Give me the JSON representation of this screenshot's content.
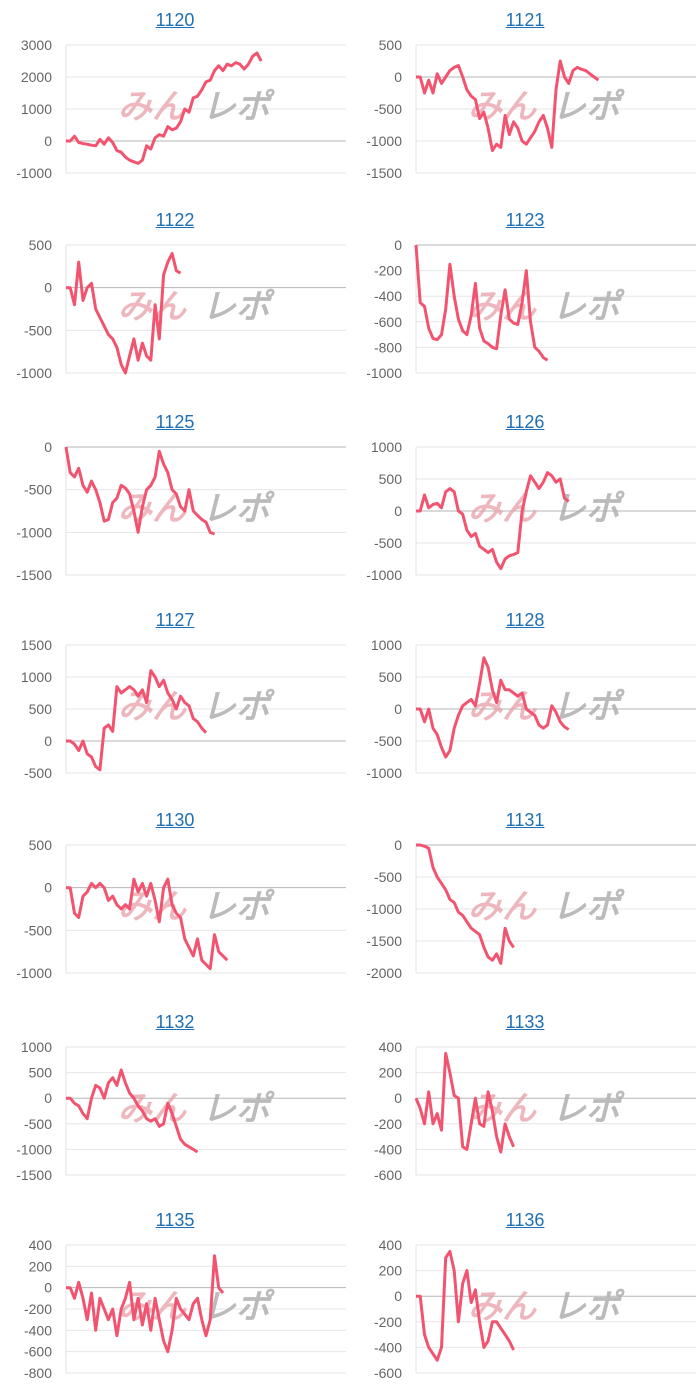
{
  "watermark": {
    "text_a": "みん",
    "text_b": "レポ",
    "color_a": "#e8a0a8",
    "color_b": "#b0b0b0"
  },
  "line_color": "#f25470",
  "chart_data": [
    {
      "type": "line",
      "title": "1120",
      "yticks": [
        3000,
        2000,
        1000,
        0,
        -1000
      ],
      "ylim": [
        -1000,
        3000
      ],
      "values": [
        0,
        0,
        150,
        -50,
        -80,
        -100,
        -130,
        -150,
        50,
        -100,
        100,
        -50,
        -300,
        -350,
        -500,
        -600,
        -650,
        -700,
        -600,
        -150,
        -250,
        100,
        200,
        150,
        450,
        350,
        400,
        600,
        1000,
        900,
        1350,
        1400,
        1600,
        1850,
        1900,
        2200,
        2350,
        2200,
        2400,
        2350,
        2450,
        2400,
        2250,
        2400,
        2650,
        2750,
        2500
      ]
    },
    {
      "type": "line",
      "title": "1121",
      "yticks": [
        500,
        0,
        -500,
        -1000,
        -1500
      ],
      "ylim": [
        -1500,
        500
      ],
      "values": [
        0,
        0,
        -250,
        -50,
        -250,
        50,
        -100,
        0,
        100,
        150,
        180,
        0,
        -200,
        -300,
        -350,
        -650,
        -550,
        -800,
        -1150,
        -1050,
        -1100,
        -600,
        -900,
        -700,
        -800,
        -1000,
        -1050,
        -950,
        -850,
        -700,
        -600,
        -800,
        -1100,
        -200,
        250,
        0,
        -100,
        100,
        150,
        120,
        100,
        50,
        0,
        -50
      ]
    },
    {
      "type": "line",
      "title": "1122",
      "yticks": [
        500,
        0,
        -500,
        -1000
      ],
      "ylim": [
        -1000,
        500
      ],
      "values": [
        0,
        0,
        -200,
        300,
        -150,
        0,
        50,
        -250,
        -350,
        -450,
        -550,
        -600,
        -700,
        -900,
        -1000,
        -800,
        -600,
        -850,
        -650,
        -800,
        -850,
        -200,
        -600,
        150,
        300,
        400,
        200,
        170
      ]
    },
    {
      "type": "line",
      "title": "1123",
      "yticks": [
        0,
        -200,
        -400,
        -600,
        -800,
        -1000
      ],
      "ylim": [
        -1000,
        0
      ],
      "values": [
        0,
        -450,
        -480,
        -650,
        -730,
        -740,
        -700,
        -500,
        -150,
        -400,
        -580,
        -670,
        -700,
        -550,
        -300,
        -650,
        -750,
        -770,
        -800,
        -810,
        -550,
        -350,
        -580,
        -610,
        -620,
        -450,
        -200,
        -600,
        -800,
        -830,
        -880,
        -900
      ]
    },
    {
      "type": "line",
      "title": "1125",
      "yticks": [
        0,
        -500,
        -1000,
        -1500
      ],
      "ylim": [
        -1500,
        0
      ],
      "values": [
        0,
        -300,
        -350,
        -250,
        -450,
        -530,
        -400,
        -500,
        -650,
        -870,
        -850,
        -650,
        -600,
        -450,
        -480,
        -550,
        -750,
        -1000,
        -700,
        -500,
        -450,
        -350,
        -50,
        -200,
        -300,
        -500,
        -550,
        -700,
        -750,
        -500,
        -750,
        -800,
        -850,
        -880,
        -1000,
        -1020
      ]
    },
    {
      "type": "line",
      "title": "1126",
      "yticks": [
        1000,
        500,
        0,
        -500,
        -1000
      ],
      "ylim": [
        -1000,
        1000
      ],
      "values": [
        0,
        0,
        250,
        50,
        100,
        120,
        50,
        300,
        350,
        300,
        0,
        -50,
        -300,
        -400,
        -350,
        -550,
        -600,
        -650,
        -600,
        -800,
        -900,
        -750,
        -700,
        -680,
        -650,
        0,
        300,
        550,
        450,
        350,
        450,
        600,
        550,
        450,
        500,
        200,
        150
      ]
    },
    {
      "type": "line",
      "title": "1127",
      "yticks": [
        1500,
        1000,
        500,
        0,
        -500
      ],
      "ylim": [
        -500,
        1500
      ],
      "values": [
        0,
        0,
        -50,
        -150,
        0,
        -200,
        -250,
        -400,
        -450,
        200,
        250,
        150,
        850,
        750,
        800,
        850,
        800,
        700,
        800,
        600,
        1100,
        1000,
        850,
        950,
        750,
        650,
        500,
        700,
        600,
        550,
        350,
        300,
        200,
        130
      ]
    },
    {
      "type": "line",
      "title": "1128",
      "yticks": [
        1000,
        500,
        0,
        -500,
        -1000
      ],
      "ylim": [
        -1000,
        1000
      ],
      "values": [
        0,
        0,
        -200,
        0,
        -300,
        -400,
        -600,
        -750,
        -650,
        -300,
        -100,
        50,
        100,
        150,
        50,
        400,
        800,
        650,
        300,
        100,
        450,
        300,
        300,
        250,
        200,
        250,
        0,
        -50,
        -100,
        -250,
        -300,
        -250,
        50,
        -50,
        -200,
        -280,
        -320
      ]
    },
    {
      "type": "line",
      "title": "1130",
      "yticks": [
        500,
        0,
        -500,
        -1000
      ],
      "ylim": [
        -1000,
        500
      ],
      "values": [
        0,
        0,
        -300,
        -350,
        -100,
        -50,
        50,
        0,
        50,
        0,
        -150,
        -100,
        -200,
        -250,
        -200,
        -250,
        100,
        -50,
        50,
        -100,
        50,
        -150,
        -400,
        0,
        100,
        -200,
        -300,
        -350,
        -600,
        -700,
        -800,
        -600,
        -850,
        -900,
        -950,
        -550,
        -750,
        -800,
        -850
      ]
    },
    {
      "type": "line",
      "title": "1131",
      "yticks": [
        0,
        -500,
        -1000,
        -1500,
        -2000
      ],
      "ylim": [
        -2000,
        0
      ],
      "values": [
        0,
        0,
        -20,
        -50,
        -350,
        -500,
        -600,
        -700,
        -850,
        -900,
        -1050,
        -1100,
        -1200,
        -1300,
        -1350,
        -1400,
        -1600,
        -1750,
        -1800,
        -1700,
        -1850,
        -1300,
        -1500,
        -1600
      ]
    },
    {
      "type": "line",
      "title": "1132",
      "yticks": [
        1000,
        500,
        0,
        -500,
        -1000,
        -1500
      ],
      "ylim": [
        -1500,
        1000
      ],
      "values": [
        0,
        0,
        -100,
        -150,
        -300,
        -400,
        0,
        250,
        200,
        0,
        300,
        400,
        250,
        550,
        300,
        100,
        0,
        -150,
        -250,
        -400,
        -450,
        -400,
        -550,
        -500,
        -100,
        -300,
        -550,
        -800,
        -900,
        -950,
        -1000,
        -1050
      ]
    },
    {
      "type": "line",
      "title": "1133",
      "yticks": [
        400,
        200,
        0,
        -200,
        -400,
        -600
      ],
      "ylim": [
        -600,
        400
      ],
      "values": [
        0,
        -80,
        -200,
        50,
        -200,
        -120,
        -250,
        350,
        200,
        20,
        0,
        -380,
        -400,
        -200,
        0,
        -200,
        -220,
        50,
        -100,
        -300,
        -420,
        -200,
        -300,
        -380
      ]
    },
    {
      "type": "line",
      "title": "1135",
      "yticks": [
        400,
        200,
        0,
        -200,
        -400,
        -600,
        -800
      ],
      "ylim": [
        -800,
        400
      ],
      "values": [
        0,
        0,
        -100,
        50,
        -100,
        -300,
        -50,
        -400,
        -100,
        -200,
        -300,
        -200,
        -450,
        -200,
        -100,
        50,
        -300,
        -100,
        -350,
        -150,
        -400,
        -100,
        -300,
        -500,
        -600,
        -400,
        -100,
        -200,
        -250,
        -300,
        -150,
        -100,
        -300,
        -450,
        -300,
        300,
        0,
        -50
      ]
    },
    {
      "type": "line",
      "title": "1136",
      "yticks": [
        400,
        200,
        0,
        -200,
        -400,
        -600
      ],
      "ylim": [
        -600,
        400
      ],
      "values": [
        0,
        0,
        -300,
        -400,
        -450,
        -500,
        -400,
        300,
        350,
        200,
        -200,
        100,
        200,
        -50,
        50,
        -200,
        -400,
        -350,
        -200,
        -200,
        -250,
        -300,
        -350,
        -420
      ]
    }
  ]
}
